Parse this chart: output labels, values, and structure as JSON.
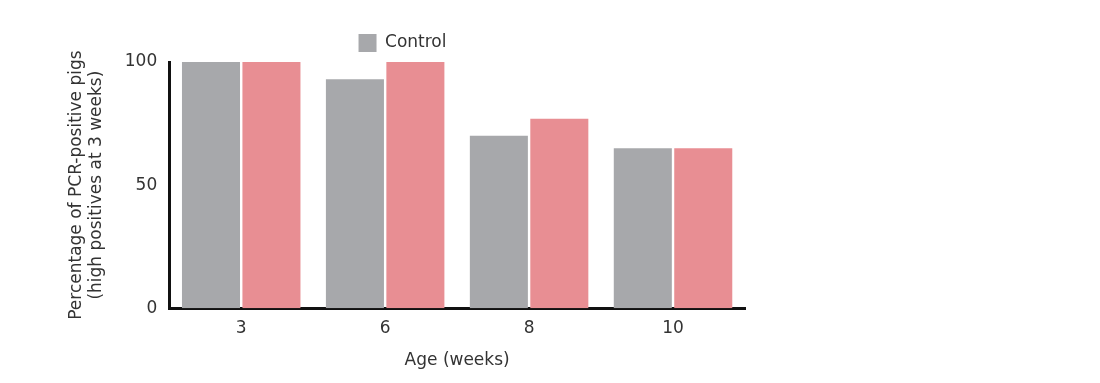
{
  "chart_data": {
    "type": "bar",
    "xlabel": "Age (weeks)",
    "ylabel": "Percentage of PCR-positive pigs\n(high positives at 3 weeks)",
    "categories": [
      "3",
      "6",
      "8",
      "10"
    ],
    "series": [
      {
        "name": "Control",
        "color": "#a7a8ab",
        "values": [
          100,
          93,
          70,
          65
        ]
      },
      {
        "color": "#e88e93",
        "values": [
          100,
          100,
          77,
          65
        ]
      }
    ],
    "ylim": [
      0,
      100
    ],
    "yticks": [
      0,
      50,
      100
    ],
    "grid": false,
    "legend": "top"
  }
}
